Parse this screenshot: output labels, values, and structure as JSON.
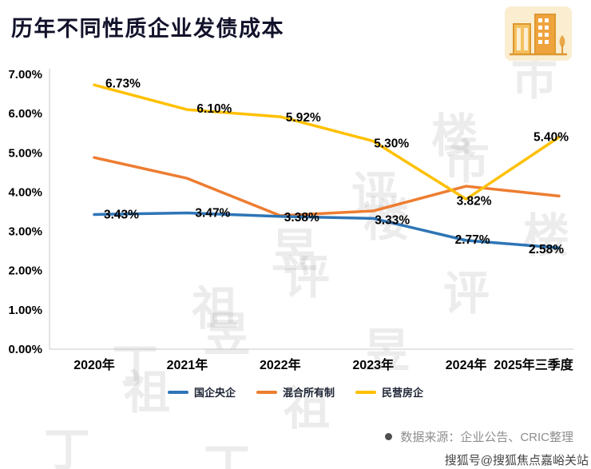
{
  "header": {
    "title": "历年不同性质企业发债成本"
  },
  "chart_data": {
    "type": "line",
    "title": "历年不同性质企业发债成本",
    "categories": [
      "2020年",
      "2021年",
      "2022年",
      "2023年",
      "2024年",
      "2025年三季度"
    ],
    "series": [
      {
        "name": "国企央企",
        "color": "#2E75B6",
        "values": [
          3.43,
          3.47,
          3.38,
          3.33,
          2.77,
          2.58
        ],
        "labels": [
          "3.43%",
          "3.47%",
          "3.38%",
          "3.33%",
          "2.77%",
          "2.58%"
        ]
      },
      {
        "name": "混合所有制",
        "color": "#ED7D31",
        "values": [
          4.88,
          4.35,
          3.4,
          3.52,
          4.15,
          3.9
        ],
        "labels": null
      },
      {
        "name": "民营房企",
        "color": "#FFC000",
        "values": [
          6.73,
          6.1,
          5.92,
          5.3,
          3.82,
          5.4
        ],
        "labels": [
          "6.73%",
          "6.10%",
          "5.92%",
          "5.30%",
          "3.82%",
          "5.40%"
        ]
      }
    ],
    "ylim": [
      0,
      7
    ],
    "ytick_step": 1,
    "yticks": [
      "0.00%",
      "1.00%",
      "2.00%",
      "3.00%",
      "4.00%",
      "5.00%",
      "6.00%",
      "7.00%"
    ],
    "grid": false,
    "legend_position": "bottom"
  },
  "footer": {
    "source": "数据来源：企业公告、CRIC整理"
  },
  "watermark": {
    "diagonal_text": "丁祖昱评楼市",
    "brand": "搜狐号@搜狐焦点嘉峪关站"
  }
}
